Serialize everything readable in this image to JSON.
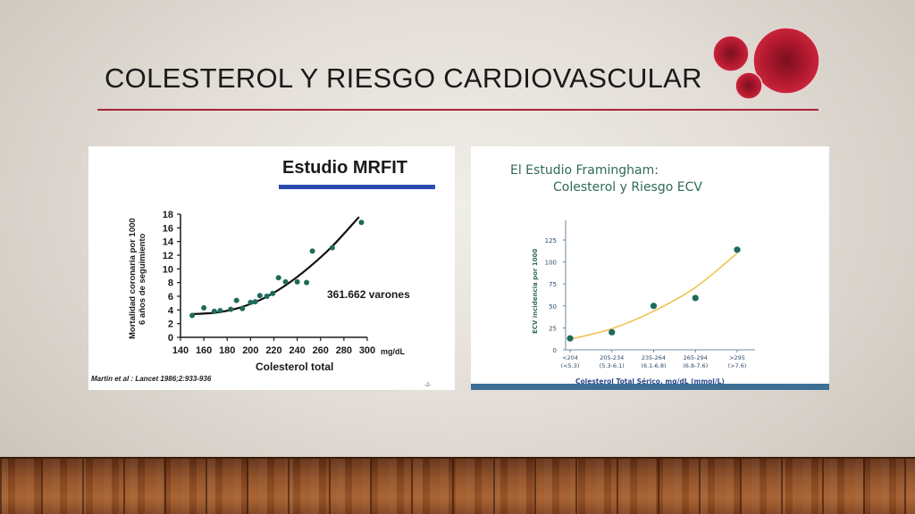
{
  "slide": {
    "title": "COLESTEROL Y RIESGO CARDIOVASCULAR",
    "accent_color": "#a8243a",
    "decoration_icon": "red-circles-icon"
  },
  "chart_data": [
    {
      "type": "scatter",
      "title": "Estudio MRFIT",
      "xlabel": "Colesterol total",
      "xunit": "mg/dL",
      "ylabel": "Mortalidad coronaria por 1000",
      "ylabel2": "6 años de seguimiento",
      "xlim": [
        140,
        300
      ],
      "ylim": [
        0,
        18
      ],
      "xticks": [
        140,
        160,
        180,
        200,
        220,
        240,
        260,
        280,
        300
      ],
      "yticks": [
        0,
        2,
        4,
        6,
        8,
        10,
        12,
        14,
        16,
        18
      ],
      "annotation": "361.662 varones",
      "citation": "Martin et al : Lancet 1986;2:933-936",
      "page_number": "-2-",
      "points": [
        {
          "x": 150,
          "y": 3.2
        },
        {
          "x": 160,
          "y": 4.3
        },
        {
          "x": 169,
          "y": 3.8
        },
        {
          "x": 174,
          "y": 3.9
        },
        {
          "x": 183,
          "y": 4.1
        },
        {
          "x": 188,
          "y": 5.4
        },
        {
          "x": 193,
          "y": 4.2
        },
        {
          "x": 200,
          "y": 5.1
        },
        {
          "x": 204,
          "y": 5.2
        },
        {
          "x": 208,
          "y": 6.1
        },
        {
          "x": 214,
          "y": 6.0
        },
        {
          "x": 219,
          "y": 6.4
        },
        {
          "x": 224,
          "y": 8.7
        },
        {
          "x": 230,
          "y": 8.1
        },
        {
          "x": 240,
          "y": 8.1
        },
        {
          "x": 248,
          "y": 8.0
        },
        {
          "x": 253,
          "y": 12.6
        },
        {
          "x": 270,
          "y": 13.1
        },
        {
          "x": 295,
          "y": 16.8
        }
      ],
      "trend": [
        {
          "x": 150,
          "y": 3.4
        },
        {
          "x": 170,
          "y": 3.6
        },
        {
          "x": 190,
          "y": 4.3
        },
        {
          "x": 210,
          "y": 5.6
        },
        {
          "x": 230,
          "y": 7.6
        },
        {
          "x": 250,
          "y": 10.2
        },
        {
          "x": 270,
          "y": 13.3
        },
        {
          "x": 293,
          "y": 17.6
        }
      ],
      "point_color": "#1d6b5a",
      "header_bar_color": "#2b4bb0",
      "grid": false
    },
    {
      "type": "scatter",
      "title_line1": "El Estudio Framingham:",
      "title_line2": "Colesterol y Riesgo ECV",
      "ylabel": "ECV incidencia por 1000",
      "xlabel": "Colesterol Total Sérico, mg/dL (mmol/L)",
      "ylim": [
        0,
        125
      ],
      "yticks": [
        0,
        25,
        50,
        75,
        100,
        125
      ],
      "categories": [
        {
          "label": "<204",
          "sub": "(<5.3)"
        },
        {
          "label": "205-234",
          "sub": "(5.3-6.1)"
        },
        {
          "label": "235-264",
          "sub": "(6.1-6.8)"
        },
        {
          "label": "265-294",
          "sub": "(6.8-7.6)"
        },
        {
          "label": ">295",
          "sub": "(>7.6)"
        }
      ],
      "values": [
        13,
        20,
        50,
        59,
        114
      ],
      "trend": [
        12,
        24,
        44,
        71,
        110
      ],
      "point_color": "#1d6b5a",
      "trend_color": "#f0c24a",
      "title_color": "#2e6b55",
      "grid": false
    }
  ]
}
